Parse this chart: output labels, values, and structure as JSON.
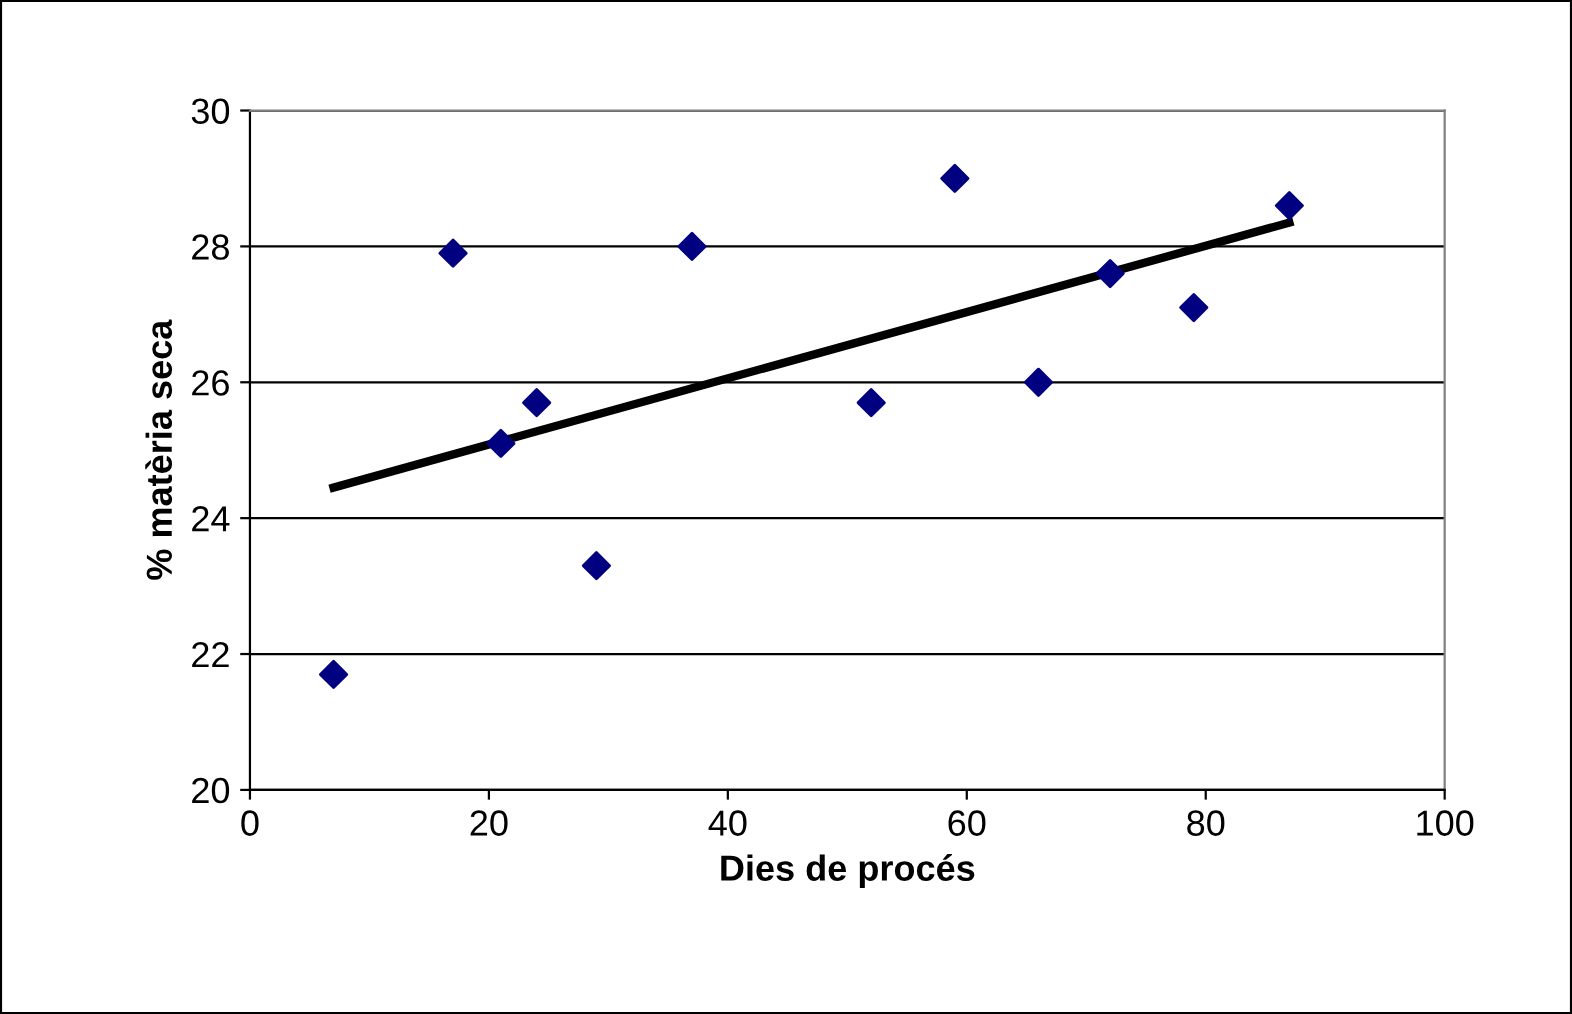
{
  "chart_data": {
    "type": "scatter",
    "xlabel": "Dies de procés",
    "ylabel": "% matèria seca",
    "series": [
      {
        "color": "#000080",
        "marker": "diamond",
        "x": [
          7,
          17,
          21,
          24,
          29,
          37,
          52,
          59,
          66,
          72,
          79,
          87
        ],
        "values": [
          21.7,
          27.9,
          25.1,
          25.7,
          23.3,
          28.0,
          25.7,
          29.0,
          26.0,
          27.6,
          27.1,
          28.6
        ]
      },
      {
        "type": "line",
        "color": "#000000",
        "marker": "none",
        "line_style": "solid",
        "x": [
          7,
          87
        ],
        "values": [
          24.45,
          28.35
        ]
      }
    ],
    "xlim": [
      0,
      100
    ],
    "xticks": [
      0,
      20,
      40,
      60,
      80,
      100
    ],
    "ylim": [
      20,
      30
    ],
    "yticks": [
      20,
      22,
      24,
      26,
      28,
      30
    ],
    "grid": "y",
    "legend": false
  }
}
